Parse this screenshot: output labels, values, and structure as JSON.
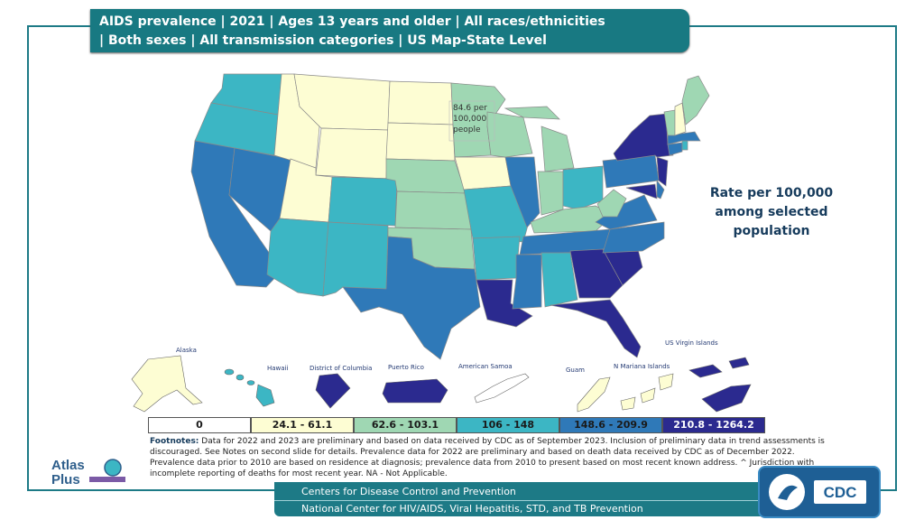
{
  "header": {
    "title_line1": "AIDS prevalence | 2021 | Ages 13 years and older | All races/ethnicities",
    "title_line2": "| Both sexes | All transmission categories | US Map-State Level"
  },
  "legend": {
    "title": "Rate per 100,000 among selected population",
    "bins": [
      {
        "label": "0",
        "color": "#ffffff"
      },
      {
        "label": "24.1 - 61.1",
        "color": "#fdfdd3"
      },
      {
        "label": "62.6 - 103.1",
        "color": "#9fd7b3"
      },
      {
        "label": "106 - 148",
        "color": "#3cb6c4"
      },
      {
        "label": "148.6 - 209.9",
        "color": "#2f79b8"
      },
      {
        "label": "210.8 - 1264.2",
        "color": "#2b2a8f"
      }
    ]
  },
  "callout": {
    "text": "84.6 per 100,000 people",
    "state": "Minnesota",
    "rate": 84.6
  },
  "territories": {
    "alaska": "Alaska",
    "hawaii": "Hawaii",
    "dc": "District of Columbia",
    "puerto_rico": "Puerto Rico",
    "american_samoa": "American Samoa",
    "guam": "Guam",
    "n_mariana": "N Mariana Islands",
    "us_virgin": "US Virgin Islands"
  },
  "footnotes": {
    "label": "Footnotes:",
    "text": " Data for 2022 and 2023 are preliminary and based on data received by CDC as of September 2023. Inclusion of preliminary data in trend assessments is discouraged. See Notes on second slide for details. Prevalence data for 2022 are preliminary and based on death data received by CDC as of December 2022. Prevalence data prior to 2010 are based on residence at diagnosis; prevalence data from 2010 to present based on most recent known address. ^ Jurisdiction with incomplete reporting of deaths for most recent year. NA - Not Applicable."
  },
  "footer": {
    "line1": "Centers for Disease Control and Prevention",
    "line2": "National Center for HIV/AIDS, Viral Hepatitis, STD, and TB Prevention"
  },
  "logos": {
    "atlas": "AtlasPlus",
    "cdc": "CDC"
  },
  "colors": {
    "accent": "#187982",
    "bin1": "#fdfdd3",
    "bin2": "#9fd7b3",
    "bin3": "#3cb6c4",
    "bin4": "#2f79b8",
    "bin5": "#2b2a8f"
  }
}
